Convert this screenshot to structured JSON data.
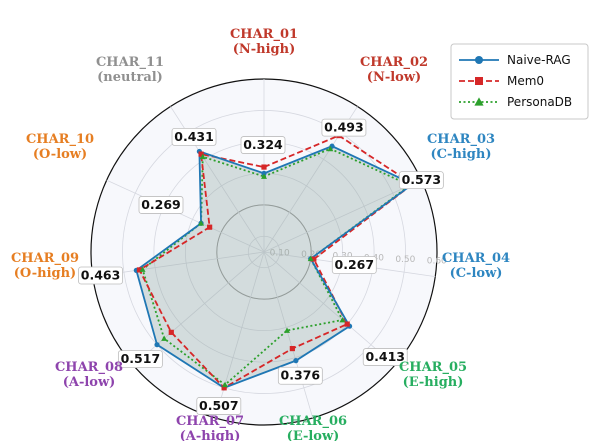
{
  "chart_data": {
    "type": "radar",
    "categories": [
      {
        "name": "CHAR_01",
        "sub": "(N-high)",
        "color": "#c0392b"
      },
      {
        "name": "CHAR_02",
        "sub": "(N-low)",
        "color": "#c0392b"
      },
      {
        "name": "CHAR_03",
        "sub": "(C-high)",
        "color": "#2e86c1"
      },
      {
        "name": "CHAR_04",
        "sub": "(C-low)",
        "color": "#2e86c1"
      },
      {
        "name": "CHAR_05",
        "sub": "(E-high)",
        "color": "#27ae60"
      },
      {
        "name": "CHAR_06",
        "sub": "(E-low)",
        "color": "#27ae60"
      },
      {
        "name": "CHAR_07",
        "sub": "(A-high)",
        "color": "#8e44ad"
      },
      {
        "name": "CHAR_08",
        "sub": "(A-low)",
        "color": "#8e44ad"
      },
      {
        "name": "CHAR_09",
        "sub": "(O-high)",
        "color": "#e67e22"
      },
      {
        "name": "CHAR_10",
        "sub": "(O-low)",
        "color": "#e67e22"
      },
      {
        "name": "CHAR_11",
        "sub": "(neutral)",
        "color": "#909090"
      }
    ],
    "rlim": [
      0.05,
      0.6
    ],
    "rticks": [
      0.1,
      0.2,
      0.3,
      0.4,
      0.5,
      0.6
    ],
    "rtick_labels": [
      "0.10",
      "0.20",
      "0.30",
      "0.40",
      "0.50",
      "0.60"
    ],
    "value_labels": [
      "0.324",
      "0.493",
      "0.573",
      "0.267",
      "0.413",
      "0.376",
      "0.507",
      "0.517",
      "0.463",
      "0.269",
      "0.431"
    ],
    "series": [
      {
        "name": "Naive-RAG",
        "color": "#1f77b4",
        "style": "solid",
        "marker": "circle",
        "values": [
          0.3,
          0.45,
          0.57,
          0.2,
          0.41,
          0.41,
          0.5,
          0.5,
          0.46,
          0.27,
          0.43
        ]
      },
      {
        "name": "Mem0",
        "color": "#d62728",
        "style": "dashed",
        "marker": "square",
        "values": [
          0.32,
          0.49,
          0.57,
          0.21,
          0.4,
          0.37,
          0.5,
          0.44,
          0.45,
          0.24,
          0.42
        ]
      },
      {
        "name": "PersonaDB",
        "color": "#2ca02c",
        "style": "dotted",
        "marker": "triangle",
        "values": [
          0.29,
          0.44,
          0.56,
          0.2,
          0.38,
          0.31,
          0.49,
          0.47,
          0.44,
          0.27,
          0.41
        ]
      }
    ],
    "legend_position": "top-right",
    "grid": true
  }
}
